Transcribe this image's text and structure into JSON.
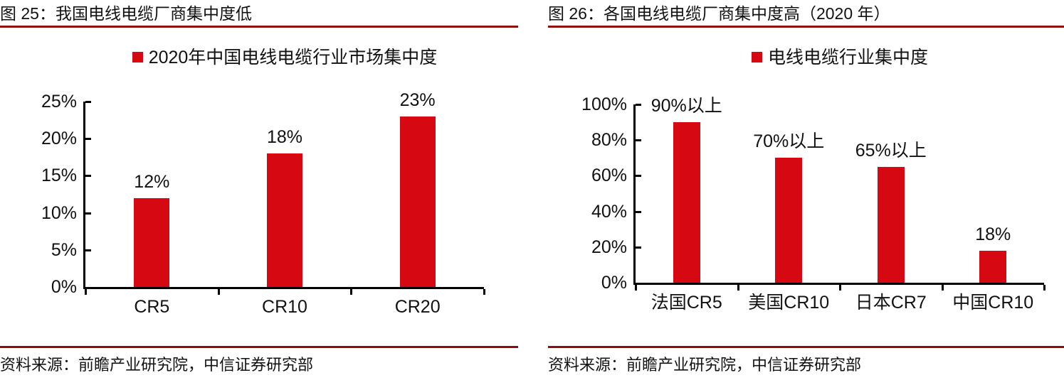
{
  "colors": {
    "bar_red": "#d60812",
    "rule_dark_red": "#8e0e0b",
    "axis_black": "#000000",
    "background": "#ffffff"
  },
  "figures": [
    {
      "id": "figure-25",
      "title": "图 25：我国电线电缆厂商集中度低",
      "legend": "2020年中国电线电缆行业市场集中度",
      "source": "资料来源：前瞻产业研究院，中信证券研究部",
      "chart_data": {
        "type": "bar",
        "title": "2020年中国电线电缆行业市场集中度",
        "categories": [
          "CR5",
          "CR10",
          "CR20"
        ],
        "values": [
          12,
          18,
          23
        ],
        "value_labels": [
          "12%",
          "18%",
          "23%"
        ],
        "xlabel": "",
        "ylabel": "",
        "ylim": [
          0,
          25
        ],
        "ytick_step": 5,
        "ytick_labels": [
          "0%",
          "5%",
          "10%",
          "15%",
          "20%",
          "25%"
        ],
        "bar_color": "#d60812",
        "grid": false,
        "legend_position": "top"
      }
    },
    {
      "id": "figure-26",
      "title": "图 26：各国电线电缆厂商集中度高（2020 年）",
      "legend": "电线电缆行业集中度",
      "source": "资料来源：前瞻产业研究院，中信证券研究部",
      "chart_data": {
        "type": "bar",
        "title": "电线电缆行业集中度",
        "categories": [
          "法国CR5",
          "美国CR10",
          "日本CR7",
          "中国CR10"
        ],
        "values": [
          90,
          70,
          65,
          18
        ],
        "value_labels": [
          "90%以上",
          "70%以上",
          "65%以上",
          "18%"
        ],
        "xlabel": "",
        "ylabel": "",
        "ylim": [
          0,
          100
        ],
        "ytick_step": 20,
        "ytick_labels": [
          "0%",
          "20%",
          "40%",
          "60%",
          "80%",
          "100%"
        ],
        "bar_color": "#d60812",
        "grid": false,
        "legend_position": "top"
      }
    }
  ]
}
